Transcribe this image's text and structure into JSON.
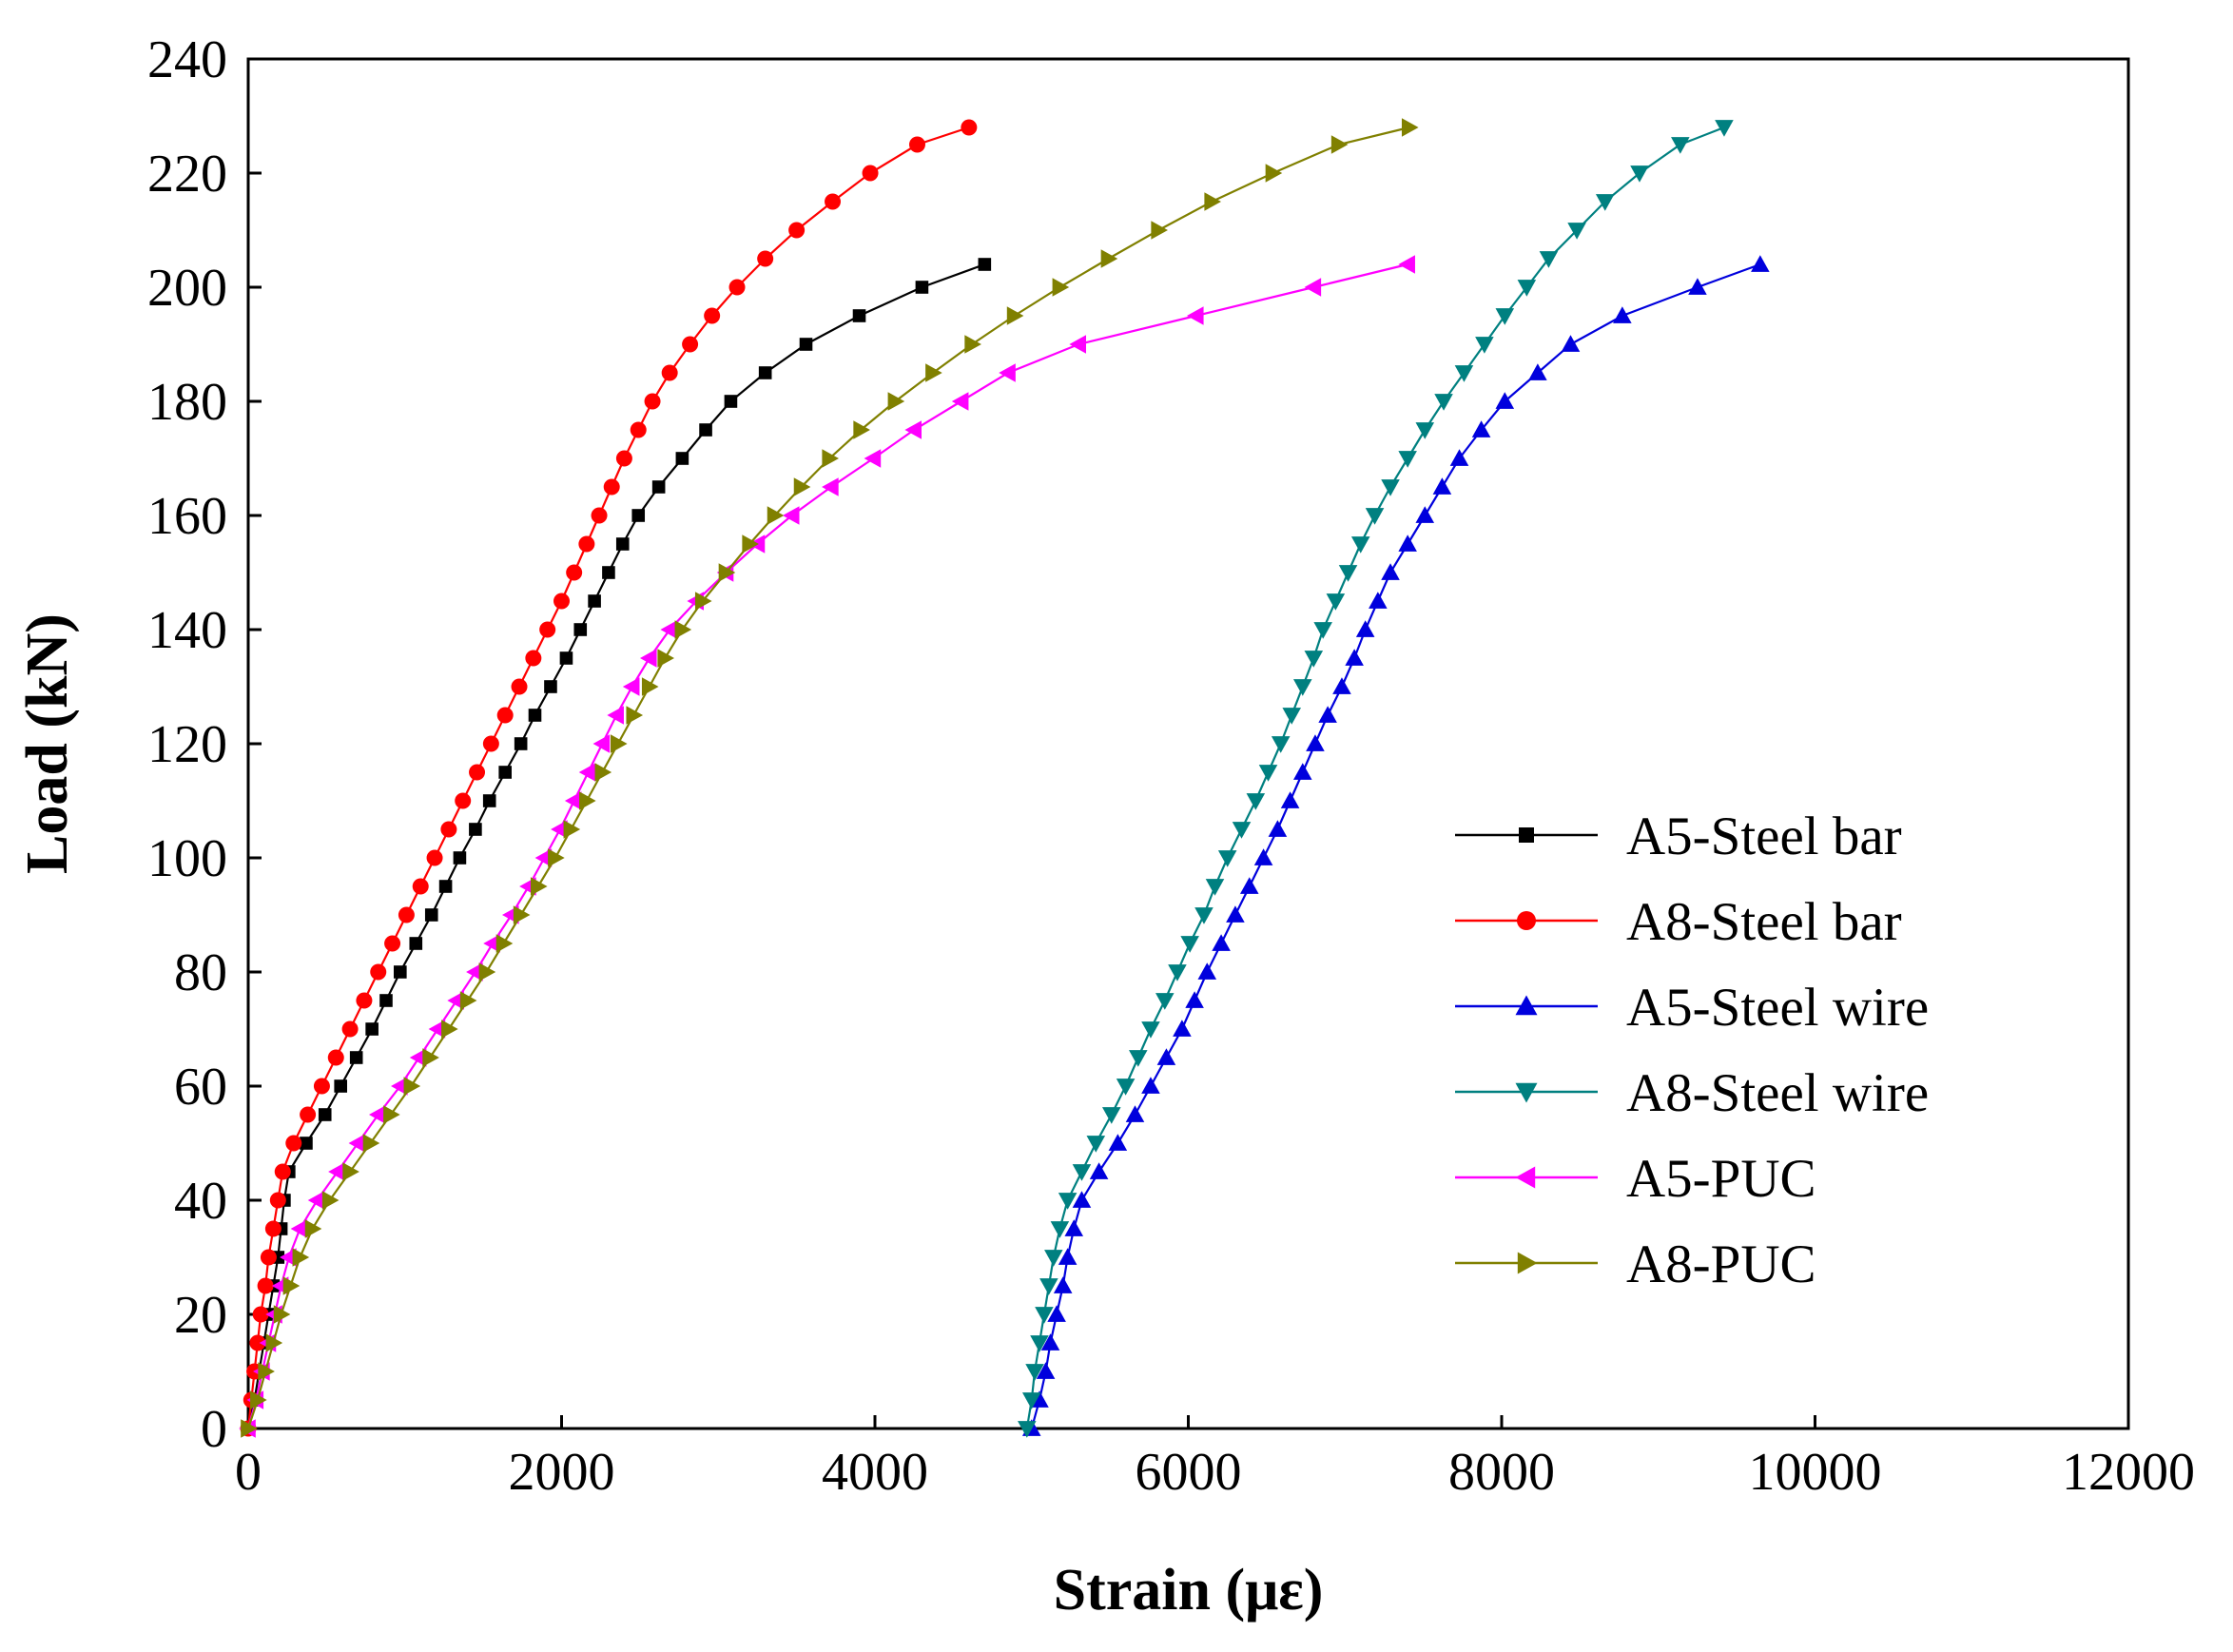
{
  "chart_data": {
    "type": "line",
    "xlabel": "Strain (με)",
    "ylabel": "Load (kN)",
    "xlim": [
      0,
      12000
    ],
    "ylim": [
      0,
      240
    ],
    "xticks": [
      0,
      2000,
      4000,
      6000,
      8000,
      10000,
      12000
    ],
    "yticks": [
      0,
      20,
      40,
      60,
      80,
      100,
      120,
      140,
      160,
      180,
      200,
      220,
      240
    ],
    "grid": false,
    "legend_position": "center-right",
    "series": [
      {
        "name": "A5-Steel bar",
        "color": "#000000",
        "marker": "square",
        "points": [
          [
            0,
            0
          ],
          [
            40,
            5
          ],
          [
            70,
            10
          ],
          [
            100,
            15
          ],
          [
            130,
            20
          ],
          [
            160,
            25
          ],
          [
            190,
            30
          ],
          [
            210,
            35
          ],
          [
            230,
            40
          ],
          [
            260,
            45
          ],
          [
            370,
            50
          ],
          [
            490,
            55
          ],
          [
            590,
            60
          ],
          [
            690,
            65
          ],
          [
            790,
            70
          ],
          [
            880,
            75
          ],
          [
            970,
            80
          ],
          [
            1070,
            85
          ],
          [
            1170,
            90
          ],
          [
            1260,
            95
          ],
          [
            1350,
            100
          ],
          [
            1450,
            105
          ],
          [
            1540,
            110
          ],
          [
            1640,
            115
          ],
          [
            1740,
            120
          ],
          [
            1830,
            125
          ],
          [
            1930,
            130
          ],
          [
            2030,
            135
          ],
          [
            2120,
            140
          ],
          [
            2210,
            145
          ],
          [
            2300,
            150
          ],
          [
            2390,
            155
          ],
          [
            2490,
            160
          ],
          [
            2620,
            165
          ],
          [
            2770,
            170
          ],
          [
            2920,
            175
          ],
          [
            3080,
            180
          ],
          [
            3300,
            185
          ],
          [
            3560,
            190
          ],
          [
            3900,
            195
          ],
          [
            4300,
            200
          ],
          [
            4700,
            204
          ]
        ]
      },
      {
        "name": "A8-Steel bar",
        "color": "#ff0000",
        "marker": "circle",
        "points": [
          [
            0,
            0
          ],
          [
            20,
            5
          ],
          [
            40,
            10
          ],
          [
            60,
            15
          ],
          [
            80,
            20
          ],
          [
            110,
            25
          ],
          [
            130,
            30
          ],
          [
            160,
            35
          ],
          [
            190,
            40
          ],
          [
            220,
            45
          ],
          [
            290,
            50
          ],
          [
            380,
            55
          ],
          [
            470,
            60
          ],
          [
            560,
            65
          ],
          [
            650,
            70
          ],
          [
            740,
            75
          ],
          [
            830,
            80
          ],
          [
            920,
            85
          ],
          [
            1010,
            90
          ],
          [
            1100,
            95
          ],
          [
            1190,
            100
          ],
          [
            1280,
            105
          ],
          [
            1370,
            110
          ],
          [
            1460,
            115
          ],
          [
            1550,
            120
          ],
          [
            1640,
            125
          ],
          [
            1730,
            130
          ],
          [
            1820,
            135
          ],
          [
            1910,
            140
          ],
          [
            2000,
            145
          ],
          [
            2080,
            150
          ],
          [
            2160,
            155
          ],
          [
            2240,
            160
          ],
          [
            2320,
            165
          ],
          [
            2400,
            170
          ],
          [
            2490,
            175
          ],
          [
            2580,
            180
          ],
          [
            2690,
            185
          ],
          [
            2820,
            190
          ],
          [
            2960,
            195
          ],
          [
            3120,
            200
          ],
          [
            3300,
            205
          ],
          [
            3500,
            210
          ],
          [
            3730,
            215
          ],
          [
            3970,
            220
          ],
          [
            4270,
            225
          ],
          [
            4600,
            228
          ]
        ]
      },
      {
        "name": "A5-Steel wire",
        "color": "#0000dd",
        "marker": "triangle-up",
        "points": [
          [
            5000,
            0
          ],
          [
            5050,
            5
          ],
          [
            5090,
            10
          ],
          [
            5120,
            15
          ],
          [
            5160,
            20
          ],
          [
            5200,
            25
          ],
          [
            5230,
            30
          ],
          [
            5270,
            35
          ],
          [
            5320,
            40
          ],
          [
            5430,
            45
          ],
          [
            5550,
            50
          ],
          [
            5660,
            55
          ],
          [
            5760,
            60
          ],
          [
            5860,
            65
          ],
          [
            5960,
            70
          ],
          [
            6040,
            75
          ],
          [
            6120,
            80
          ],
          [
            6210,
            85
          ],
          [
            6300,
            90
          ],
          [
            6390,
            95
          ],
          [
            6480,
            100
          ],
          [
            6570,
            105
          ],
          [
            6650,
            110
          ],
          [
            6730,
            115
          ],
          [
            6810,
            120
          ],
          [
            6890,
            125
          ],
          [
            6980,
            130
          ],
          [
            7060,
            135
          ],
          [
            7130,
            140
          ],
          [
            7210,
            145
          ],
          [
            7290,
            150
          ],
          [
            7400,
            155
          ],
          [
            7510,
            160
          ],
          [
            7620,
            165
          ],
          [
            7730,
            170
          ],
          [
            7870,
            175
          ],
          [
            8020,
            180
          ],
          [
            8230,
            185
          ],
          [
            8440,
            190
          ],
          [
            8770,
            195
          ],
          [
            9250,
            200
          ],
          [
            9650,
            204
          ]
        ]
      },
      {
        "name": "A8-Steel wire",
        "color": "#008080",
        "marker": "triangle-down",
        "points": [
          [
            4970,
            0
          ],
          [
            5000,
            5
          ],
          [
            5020,
            10
          ],
          [
            5050,
            15
          ],
          [
            5080,
            20
          ],
          [
            5110,
            25
          ],
          [
            5140,
            30
          ],
          [
            5180,
            35
          ],
          [
            5230,
            40
          ],
          [
            5320,
            45
          ],
          [
            5410,
            50
          ],
          [
            5510,
            55
          ],
          [
            5600,
            60
          ],
          [
            5680,
            65
          ],
          [
            5760,
            70
          ],
          [
            5850,
            75
          ],
          [
            5930,
            80
          ],
          [
            6010,
            85
          ],
          [
            6100,
            90
          ],
          [
            6170,
            95
          ],
          [
            6250,
            100
          ],
          [
            6340,
            105
          ],
          [
            6430,
            110
          ],
          [
            6510,
            115
          ],
          [
            6590,
            120
          ],
          [
            6660,
            125
          ],
          [
            6730,
            130
          ],
          [
            6800,
            135
          ],
          [
            6860,
            140
          ],
          [
            6940,
            145
          ],
          [
            7020,
            150
          ],
          [
            7100,
            155
          ],
          [
            7190,
            160
          ],
          [
            7290,
            165
          ],
          [
            7400,
            170
          ],
          [
            7510,
            175
          ],
          [
            7630,
            180
          ],
          [
            7760,
            185
          ],
          [
            7890,
            190
          ],
          [
            8020,
            195
          ],
          [
            8160,
            200
          ],
          [
            8300,
            205
          ],
          [
            8480,
            210
          ],
          [
            8660,
            215
          ],
          [
            8880,
            220
          ],
          [
            9140,
            225
          ],
          [
            9420,
            228
          ]
        ]
      },
      {
        "name": "A5-PUC",
        "color": "#ff00ff",
        "marker": "triangle-left",
        "points": [
          [
            0,
            0
          ],
          [
            50,
            5
          ],
          [
            90,
            10
          ],
          [
            130,
            15
          ],
          [
            170,
            20
          ],
          [
            210,
            25
          ],
          [
            260,
            30
          ],
          [
            330,
            35
          ],
          [
            440,
            40
          ],
          [
            570,
            45
          ],
          [
            700,
            50
          ],
          [
            830,
            55
          ],
          [
            970,
            60
          ],
          [
            1090,
            65
          ],
          [
            1210,
            70
          ],
          [
            1330,
            75
          ],
          [
            1450,
            80
          ],
          [
            1560,
            85
          ],
          [
            1680,
            90
          ],
          [
            1790,
            95
          ],
          [
            1890,
            100
          ],
          [
            1990,
            105
          ],
          [
            2080,
            110
          ],
          [
            2170,
            115
          ],
          [
            2260,
            120
          ],
          [
            2350,
            125
          ],
          [
            2450,
            130
          ],
          [
            2560,
            135
          ],
          [
            2690,
            140
          ],
          [
            2860,
            145
          ],
          [
            3050,
            150
          ],
          [
            3250,
            155
          ],
          [
            3470,
            160
          ],
          [
            3720,
            165
          ],
          [
            3990,
            170
          ],
          [
            4250,
            175
          ],
          [
            4550,
            180
          ],
          [
            4850,
            185
          ],
          [
            5300,
            190
          ],
          [
            6050,
            195
          ],
          [
            6800,
            200
          ],
          [
            7400,
            204
          ]
        ]
      },
      {
        "name": "A8-PUC",
        "color": "#808000",
        "marker": "triangle-right",
        "points": [
          [
            0,
            0
          ],
          [
            60,
            5
          ],
          [
            110,
            10
          ],
          [
            160,
            15
          ],
          [
            210,
            20
          ],
          [
            270,
            25
          ],
          [
            330,
            30
          ],
          [
            410,
            35
          ],
          [
            520,
            40
          ],
          [
            650,
            45
          ],
          [
            780,
            50
          ],
          [
            910,
            55
          ],
          [
            1040,
            60
          ],
          [
            1160,
            65
          ],
          [
            1280,
            70
          ],
          [
            1400,
            75
          ],
          [
            1520,
            80
          ],
          [
            1630,
            85
          ],
          [
            1740,
            90
          ],
          [
            1850,
            95
          ],
          [
            1960,
            100
          ],
          [
            2060,
            105
          ],
          [
            2160,
            110
          ],
          [
            2260,
            115
          ],
          [
            2360,
            120
          ],
          [
            2460,
            125
          ],
          [
            2560,
            130
          ],
          [
            2660,
            135
          ],
          [
            2770,
            140
          ],
          [
            2900,
            145
          ],
          [
            3050,
            150
          ],
          [
            3200,
            155
          ],
          [
            3360,
            160
          ],
          [
            3530,
            165
          ],
          [
            3710,
            170
          ],
          [
            3910,
            175
          ],
          [
            4130,
            180
          ],
          [
            4370,
            185
          ],
          [
            4620,
            190
          ],
          [
            4890,
            195
          ],
          [
            5180,
            200
          ],
          [
            5490,
            205
          ],
          [
            5810,
            210
          ],
          [
            6150,
            215
          ],
          [
            6540,
            220
          ],
          [
            6960,
            225
          ],
          [
            7410,
            228
          ]
        ]
      }
    ]
  }
}
